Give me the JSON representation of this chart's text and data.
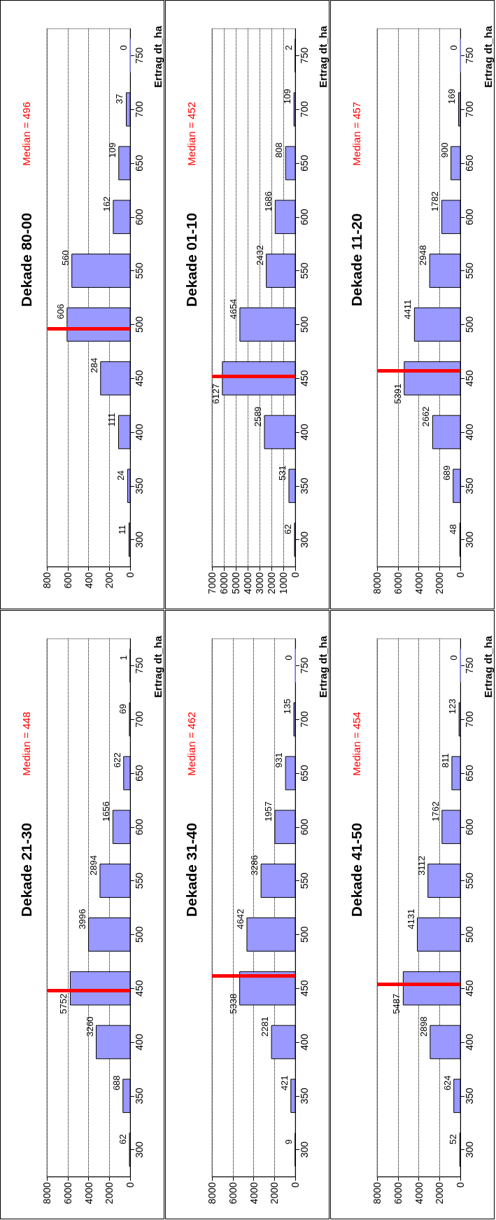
{
  "chart_data": [
    {
      "type": "bar",
      "orientation": "horizontal",
      "title": "Dekade 80-00",
      "ylabel": "Ertrag dt_ha",
      "x": [
        300,
        350,
        400,
        450,
        500,
        550,
        600,
        650,
        700,
        750
      ],
      "values": [
        11,
        24,
        111,
        284,
        606,
        560,
        162,
        109,
        37,
        0
      ],
      "color": "#9999ff",
      "xlim": [
        800,
        0
      ],
      "xticks": [
        800,
        600,
        400,
        200,
        0
      ],
      "ylim": [
        275,
        775
      ],
      "yticks": [
        300,
        350,
        400,
        450,
        500,
        550,
        600,
        650,
        700,
        750
      ],
      "grid": "x",
      "data_labels": true,
      "ref_lines": [
        {
          "axis": "y",
          "value": 496,
          "label": "Median = 496",
          "color": "#ff0000"
        }
      ]
    },
    {
      "type": "bar",
      "orientation": "horizontal",
      "title": "Dekade 01-10",
      "ylabel": "Ertrag dt_ha",
      "x": [
        300,
        350,
        400,
        450,
        500,
        550,
        600,
        650,
        700,
        750
      ],
      "values": [
        62,
        531,
        2589,
        6127,
        4654,
        2432,
        1686,
        808,
        109,
        2
      ],
      "color": "#9999ff",
      "xlim": [
        7000,
        0
      ],
      "xticks": [
        7000,
        6000,
        5000,
        4000,
        3000,
        2000,
        1000,
        0
      ],
      "ylim": [
        275,
        775
      ],
      "yticks": [
        300,
        350,
        400,
        450,
        500,
        550,
        600,
        650,
        700,
        750
      ],
      "grid": "x",
      "data_labels": true,
      "ref_lines": [
        {
          "axis": "y",
          "value": 452,
          "label": "Median = 452",
          "color": "#ff0000"
        }
      ]
    },
    {
      "type": "bar",
      "orientation": "horizontal",
      "title": "Dekade 11-20",
      "ylabel": "Ertrag dt_ha",
      "x": [
        300,
        350,
        400,
        450,
        500,
        550,
        600,
        650,
        700,
        750
      ],
      "values": [
        48,
        689,
        2662,
        5391,
        4411,
        2948,
        1782,
        900,
        169,
        0
      ],
      "color": "#9999ff",
      "xlim": [
        8000,
        0
      ],
      "xticks": [
        8000,
        6000,
        4000,
        2000,
        0
      ],
      "ylim": [
        275,
        775
      ],
      "yticks": [
        300,
        350,
        400,
        450,
        500,
        550,
        600,
        650,
        700,
        750
      ],
      "grid": "x",
      "data_labels": true,
      "ref_lines": [
        {
          "axis": "y",
          "value": 457,
          "label": "Median = 457",
          "color": "#ff0000"
        }
      ]
    },
    {
      "type": "bar",
      "orientation": "horizontal",
      "title": "Dekade 21-30",
      "ylabel": "Ertrag dt_ha",
      "x": [
        300,
        350,
        400,
        450,
        500,
        550,
        600,
        650,
        700,
        750
      ],
      "values": [
        62,
        688,
        3260,
        5752,
        3996,
        2894,
        1656,
        622,
        69,
        1
      ],
      "color": "#9999ff",
      "xlim": [
        8000,
        0
      ],
      "xticks": [
        8000,
        6000,
        4000,
        2000,
        0
      ],
      "ylim": [
        275,
        775
      ],
      "yticks": [
        300,
        350,
        400,
        450,
        500,
        550,
        600,
        650,
        700,
        750
      ],
      "grid": "x",
      "data_labels": true,
      "ref_lines": [
        {
          "axis": "y",
          "value": 448,
          "label": "Median = 448",
          "color": "#ff0000"
        }
      ]
    },
    {
      "type": "bar",
      "orientation": "horizontal",
      "title": "Dekade 31-40",
      "ylabel": "Ertrag dt_ha",
      "x": [
        300,
        350,
        400,
        450,
        500,
        550,
        600,
        650,
        700,
        750
      ],
      "values": [
        9,
        421,
        2281,
        5338,
        4642,
        3286,
        1957,
        931,
        135,
        0
      ],
      "color": "#9999ff",
      "xlim": [
        8000,
        0
      ],
      "xticks": [
        8000,
        6000,
        4000,
        2000,
        0
      ],
      "ylim": [
        275,
        775
      ],
      "yticks": [
        300,
        350,
        400,
        450,
        500,
        550,
        600,
        650,
        700,
        750
      ],
      "grid": "x",
      "data_labels": true,
      "ref_lines": [
        {
          "axis": "y",
          "value": 462,
          "label": "Median = 462",
          "color": "#ff0000"
        }
      ]
    },
    {
      "type": "bar",
      "orientation": "horizontal",
      "title": "Dekade 41-50",
      "ylabel": "Ertrag dt_ha",
      "x": [
        300,
        350,
        400,
        450,
        500,
        550,
        600,
        650,
        700,
        750
      ],
      "values": [
        52,
        624,
        2898,
        5487,
        4131,
        3112,
        1762,
        811,
        123,
        0
      ],
      "color": "#9999ff",
      "xlim": [
        8000,
        0
      ],
      "xticks": [
        8000,
        6000,
        4000,
        2000,
        0
      ],
      "ylim": [
        275,
        775
      ],
      "yticks": [
        300,
        350,
        400,
        450,
        500,
        550,
        600,
        650,
        700,
        750
      ],
      "grid": "x",
      "data_labels": true,
      "ref_lines": [
        {
          "axis": "y",
          "value": 454,
          "label": "Median = 454",
          "color": "#ff0000"
        }
      ]
    }
  ]
}
